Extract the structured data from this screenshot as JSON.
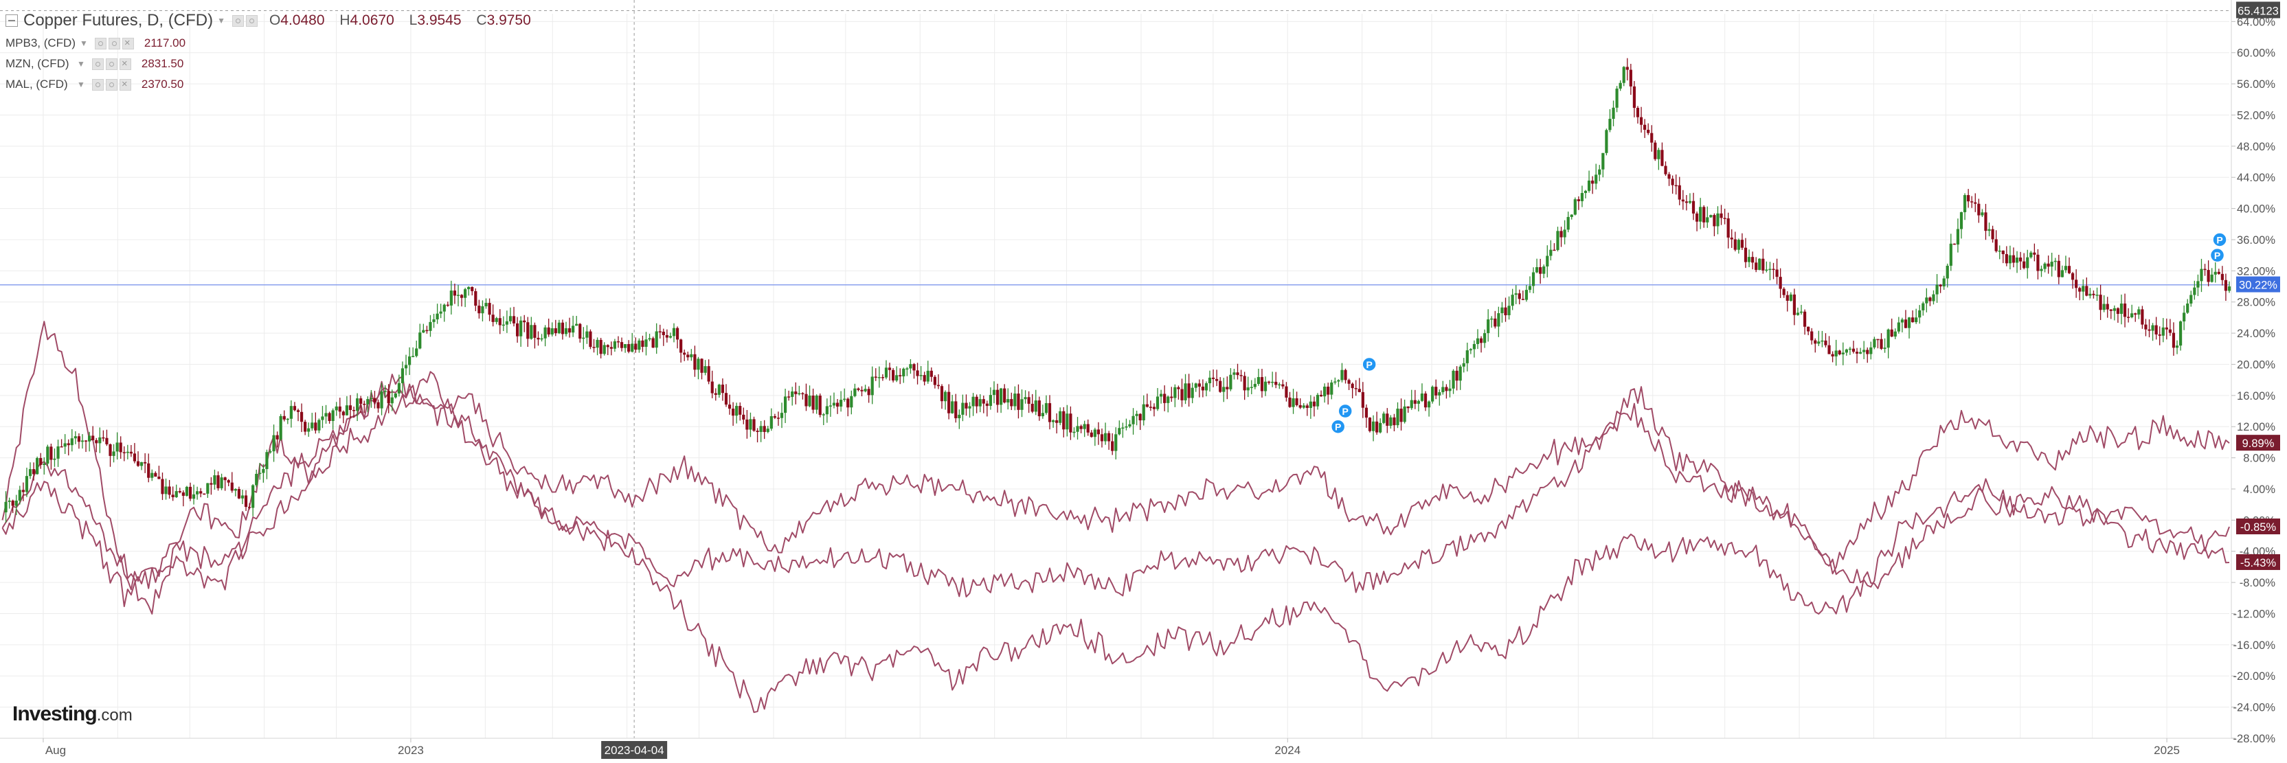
{
  "legend": {
    "main": {
      "symbol": "Copper Futures, D, (CFD)",
      "o_label": "O",
      "open": "4.0480",
      "h_label": "H",
      "high": "4.0670",
      "l_label": "L",
      "low": "3.9545",
      "c_label": "C",
      "close": "3.9750"
    },
    "compare": [
      {
        "symbol": "MPB3, (CFD)",
        "value": "2117.00"
      },
      {
        "symbol": "MZN, (CFD)",
        "value": "2831.50"
      },
      {
        "symbol": "MAL, (CFD)",
        "value": "2370.50"
      }
    ]
  },
  "branding": {
    "logo_main": "Investing",
    "logo_suffix": ".com"
  },
  "chart_data": {
    "type": "line",
    "y_axis_ticks": [
      "64.00%",
      "60.00%",
      "56.00%",
      "52.00%",
      "48.00%",
      "44.00%",
      "40.00%",
      "36.00%",
      "32.00%",
      "28.00%",
      "24.00%",
      "20.00%",
      "16.00%",
      "12.00%",
      "8.00%",
      "4.00%",
      "0.00%",
      "-4.00%",
      "-8.00%",
      "-12.00%",
      "-16.00%",
      "-20.00%",
      "-24.00%",
      "-28.00%"
    ],
    "ylim": [
      -28,
      65
    ],
    "x_axis_labels": [
      {
        "label": "Aug",
        "date": "2022-08-01"
      },
      {
        "label": "2023",
        "date": "2023-01-01"
      },
      {
        "label": "2024",
        "date": "2024-01-01"
      },
      {
        "label": "2025",
        "date": "2025-01-01"
      }
    ],
    "xlim": [
      "2022-07-14",
      "2025-01-27"
    ],
    "crosshair": {
      "x_label": "2023-04-04",
      "y_label": "65.4123",
      "y_value": 65.4
    },
    "current_value_line": 30.2,
    "price_labels": [
      {
        "text": "30.22%",
        "value": 30.22,
        "color": "#3d6fe0"
      },
      {
        "text": "9.89%",
        "value": 9.89,
        "color": "#7a1c2e"
      },
      {
        "text": "-0.85%",
        "value": -0.85,
        "color": "#7a1c2e"
      },
      {
        "text": "-5.43%",
        "value": -5.43,
        "color": "#7a1c2e"
      }
    ],
    "candles": {
      "name": "Copper Futures",
      "up_color": "#2e8b2e",
      "down_color": "#8b0a1a",
      "points": [
        [
          "2022-07-15",
          1
        ],
        [
          "2022-08-01",
          8
        ],
        [
          "2022-08-20",
          11
        ],
        [
          "2022-09-05",
          8
        ],
        [
          "2022-09-25",
          3
        ],
        [
          "2022-10-15",
          5
        ],
        [
          "2022-10-25",
          2
        ],
        [
          "2022-11-10",
          14
        ],
        [
          "2022-11-20",
          12
        ],
        [
          "2022-12-05",
          14
        ],
        [
          "2022-12-25",
          16
        ],
        [
          "2023-01-05",
          24
        ],
        [
          "2023-01-20",
          30
        ],
        [
          "2023-02-05",
          26
        ],
        [
          "2023-02-20",
          24
        ],
        [
          "2023-03-10",
          25
        ],
        [
          "2023-03-20",
          22
        ],
        [
          "2023-04-05",
          22
        ],
        [
          "2023-04-20",
          24
        ],
        [
          "2023-05-05",
          18
        ],
        [
          "2023-05-25",
          11
        ],
        [
          "2023-06-10",
          16
        ],
        [
          "2023-06-25",
          14
        ],
        [
          "2023-07-15",
          18
        ],
        [
          "2023-07-30",
          20
        ],
        [
          "2023-08-15",
          14
        ],
        [
          "2023-08-30",
          16
        ],
        [
          "2023-09-15",
          15
        ],
        [
          "2023-10-05",
          12
        ],
        [
          "2023-10-20",
          10
        ],
        [
          "2023-11-05",
          15
        ],
        [
          "2023-11-25",
          17
        ],
        [
          "2023-12-10",
          18
        ],
        [
          "2023-12-25",
          17
        ],
        [
          "2024-01-10",
          14
        ],
        [
          "2024-01-25",
          19
        ],
        [
          "2024-02-05",
          12
        ],
        [
          "2024-02-20",
          14
        ],
        [
          "2024-03-10",
          18
        ],
        [
          "2024-03-25",
          25
        ],
        [
          "2024-04-10",
          30
        ],
        [
          "2024-04-25",
          38
        ],
        [
          "2024-05-10",
          46
        ],
        [
          "2024-05-20",
          58
        ],
        [
          "2024-05-30",
          49
        ],
        [
          "2024-06-15",
          40
        ],
        [
          "2024-06-30",
          38
        ],
        [
          "2024-07-10",
          34
        ],
        [
          "2024-07-25",
          30
        ],
        [
          "2024-08-10",
          22
        ],
        [
          "2024-08-25",
          21
        ],
        [
          "2024-09-10",
          24
        ],
        [
          "2024-09-25",
          28
        ],
        [
          "2024-10-05",
          36
        ],
        [
          "2024-10-10",
          42
        ],
        [
          "2024-10-25",
          34
        ],
        [
          "2024-11-10",
          33
        ],
        [
          "2024-11-20",
          32
        ],
        [
          "2024-12-05",
          28
        ],
        [
          "2024-12-20",
          26
        ],
        [
          "2025-01-05",
          23
        ],
        [
          "2025-01-15",
          32
        ],
        [
          "2025-01-27",
          30
        ]
      ]
    },
    "series": [
      {
        "name": "MPB3, (CFD)",
        "color": "#a04a66",
        "points": [
          [
            "2022-07-15",
            0
          ],
          [
            "2022-08-01",
            25
          ],
          [
            "2022-08-15",
            18
          ],
          [
            "2022-09-01",
            -4
          ],
          [
            "2022-09-15",
            -12
          ],
          [
            "2022-10-01",
            2
          ],
          [
            "2022-10-20",
            -2
          ],
          [
            "2022-11-05",
            10
          ],
          [
            "2022-11-20",
            6
          ],
          [
            "2022-12-05",
            12
          ],
          [
            "2022-12-25",
            18
          ],
          [
            "2023-01-10",
            14
          ],
          [
            "2023-01-25",
            16
          ],
          [
            "2023-02-10",
            8
          ],
          [
            "2023-03-01",
            4
          ],
          [
            "2023-03-20",
            5
          ],
          [
            "2023-04-05",
            3
          ],
          [
            "2023-04-25",
            7
          ],
          [
            "2023-05-15",
            1
          ],
          [
            "2023-06-01",
            -4
          ],
          [
            "2023-06-20",
            1
          ],
          [
            "2023-07-10",
            4
          ],
          [
            "2023-07-30",
            5
          ],
          [
            "2023-08-20",
            4
          ],
          [
            "2023-09-10",
            2
          ],
          [
            "2023-10-01",
            1
          ],
          [
            "2023-10-20",
            0
          ],
          [
            "2023-11-10",
            2
          ],
          [
            "2023-11-30",
            4
          ],
          [
            "2023-12-20",
            3
          ],
          [
            "2024-01-10",
            7
          ],
          [
            "2024-01-30",
            0
          ],
          [
            "2024-02-15",
            -1
          ],
          [
            "2024-03-05",
            4
          ],
          [
            "2024-03-25",
            3
          ],
          [
            "2024-04-15",
            8
          ],
          [
            "2024-05-05",
            10
          ],
          [
            "2024-05-25",
            14
          ],
          [
            "2024-06-10",
            6
          ],
          [
            "2024-06-25",
            4
          ],
          [
            "2024-07-10",
            3
          ],
          [
            "2024-07-30",
            0
          ],
          [
            "2024-08-15",
            -6
          ],
          [
            "2024-08-30",
            0
          ],
          [
            "2024-09-15",
            5
          ],
          [
            "2024-09-30",
            12
          ],
          [
            "2024-10-10",
            13
          ],
          [
            "2024-10-30",
            10
          ],
          [
            "2024-11-15",
            8
          ],
          [
            "2024-11-30",
            11
          ],
          [
            "2024-12-15",
            10
          ],
          [
            "2024-12-30",
            12
          ],
          [
            "2025-01-15",
            10
          ],
          [
            "2025-01-27",
            9.89
          ]
        ]
      },
      {
        "name": "MZN, (CFD)",
        "color": "#a04a66",
        "points": [
          [
            "2022-07-15",
            -1
          ],
          [
            "2022-08-01",
            8
          ],
          [
            "2022-08-20",
            2
          ],
          [
            "2022-09-05",
            -8
          ],
          [
            "2022-09-25",
            -6
          ],
          [
            "2022-10-15",
            -8
          ],
          [
            "2022-11-05",
            4
          ],
          [
            "2022-11-20",
            8
          ],
          [
            "2022-12-05",
            12
          ],
          [
            "2022-12-25",
            18
          ],
          [
            "2023-01-10",
            14
          ],
          [
            "2023-01-25",
            12
          ],
          [
            "2023-02-10",
            6
          ],
          [
            "2023-03-01",
            0
          ],
          [
            "2023-03-20",
            -1
          ],
          [
            "2023-04-05",
            -3
          ],
          [
            "2023-04-20",
            -8
          ],
          [
            "2023-05-10",
            -4
          ],
          [
            "2023-06-01",
            -6
          ],
          [
            "2023-06-20",
            -5
          ],
          [
            "2023-07-10",
            -4
          ],
          [
            "2023-07-30",
            -6
          ],
          [
            "2023-08-20",
            -9
          ],
          [
            "2023-09-10",
            -8
          ],
          [
            "2023-10-01",
            -7
          ],
          [
            "2023-10-20",
            -9
          ],
          [
            "2023-11-10",
            -5
          ],
          [
            "2023-11-30",
            -6
          ],
          [
            "2023-12-20",
            -5
          ],
          [
            "2024-01-10",
            -4
          ],
          [
            "2024-01-30",
            -8
          ],
          [
            "2024-02-15",
            -7
          ],
          [
            "2024-03-05",
            -4
          ],
          [
            "2024-03-25",
            -2
          ],
          [
            "2024-04-15",
            4
          ],
          [
            "2024-05-05",
            8
          ],
          [
            "2024-05-25",
            17
          ],
          [
            "2024-06-10",
            8
          ],
          [
            "2024-06-25",
            6
          ],
          [
            "2024-07-10",
            3
          ],
          [
            "2024-07-30",
            0
          ],
          [
            "2024-08-15",
            -6
          ],
          [
            "2024-08-30",
            -8
          ],
          [
            "2024-09-15",
            0
          ],
          [
            "2024-09-30",
            2
          ],
          [
            "2024-10-15",
            5
          ],
          [
            "2024-10-30",
            2
          ],
          [
            "2024-11-15",
            3
          ],
          [
            "2024-11-30",
            0
          ],
          [
            "2024-12-15",
            1
          ],
          [
            "2024-12-30",
            -1
          ],
          [
            "2025-01-15",
            -3
          ],
          [
            "2025-01-27",
            -0.85
          ]
        ]
      },
      {
        "name": "MAL, (CFD)",
        "color": "#a04a66",
        "points": [
          [
            "2022-07-15",
            -1
          ],
          [
            "2022-08-01",
            5
          ],
          [
            "2022-08-20",
            -2
          ],
          [
            "2022-09-05",
            -10
          ],
          [
            "2022-09-25",
            -4
          ],
          [
            "2022-10-15",
            -6
          ],
          [
            "2022-11-05",
            0
          ],
          [
            "2022-11-20",
            5
          ],
          [
            "2022-12-05",
            10
          ],
          [
            "2022-12-25",
            14
          ],
          [
            "2023-01-10",
            18
          ],
          [
            "2023-01-25",
            10
          ],
          [
            "2023-02-10",
            5
          ],
          [
            "2023-03-01",
            0
          ],
          [
            "2023-03-20",
            -2
          ],
          [
            "2023-04-05",
            -5
          ],
          [
            "2023-04-20",
            -10
          ],
          [
            "2023-05-10",
            -18
          ],
          [
            "2023-05-25",
            -24
          ],
          [
            "2023-06-10",
            -20
          ],
          [
            "2023-06-25",
            -18
          ],
          [
            "2023-07-10",
            -19
          ],
          [
            "2023-07-30",
            -16
          ],
          [
            "2023-08-15",
            -21
          ],
          [
            "2023-08-30",
            -17
          ],
          [
            "2023-09-15",
            -16
          ],
          [
            "2023-10-05",
            -14
          ],
          [
            "2023-10-25",
            -18
          ],
          [
            "2023-11-15",
            -15
          ],
          [
            "2023-12-05",
            -16
          ],
          [
            "2023-12-25",
            -13
          ],
          [
            "2024-01-15",
            -11
          ],
          [
            "2024-01-30",
            -16
          ],
          [
            "2024-02-10",
            -22
          ],
          [
            "2024-02-25",
            -20
          ],
          [
            "2024-03-15",
            -16
          ],
          [
            "2024-04-01",
            -17
          ],
          [
            "2024-04-15",
            -12
          ],
          [
            "2024-05-01",
            -6
          ],
          [
            "2024-05-20",
            -3
          ],
          [
            "2024-06-10",
            -4
          ],
          [
            "2024-06-25",
            -2
          ],
          [
            "2024-07-15",
            -5
          ],
          [
            "2024-08-01",
            -10
          ],
          [
            "2024-08-15",
            -12
          ],
          [
            "2024-08-30",
            -8
          ],
          [
            "2024-09-15",
            -4
          ],
          [
            "2024-09-30",
            0
          ],
          [
            "2024-10-15",
            3
          ],
          [
            "2024-10-30",
            1
          ],
          [
            "2024-11-15",
            0
          ],
          [
            "2024-11-30",
            2
          ],
          [
            "2024-12-15",
            -2
          ],
          [
            "2024-12-30",
            -3
          ],
          [
            "2025-01-15",
            -4
          ],
          [
            "2025-01-27",
            -5.43
          ]
        ]
      }
    ],
    "markers": [
      {
        "label": "P",
        "date": "2024-01-22",
        "value": 12
      },
      {
        "label": "P",
        "date": "2024-01-25",
        "value": 14
      },
      {
        "label": "P",
        "date": "2024-02-04",
        "value": 20
      },
      {
        "label": "P",
        "date": "2025-01-22",
        "value": 34
      },
      {
        "label": "P",
        "date": "2025-01-23",
        "value": 36
      }
    ]
  }
}
